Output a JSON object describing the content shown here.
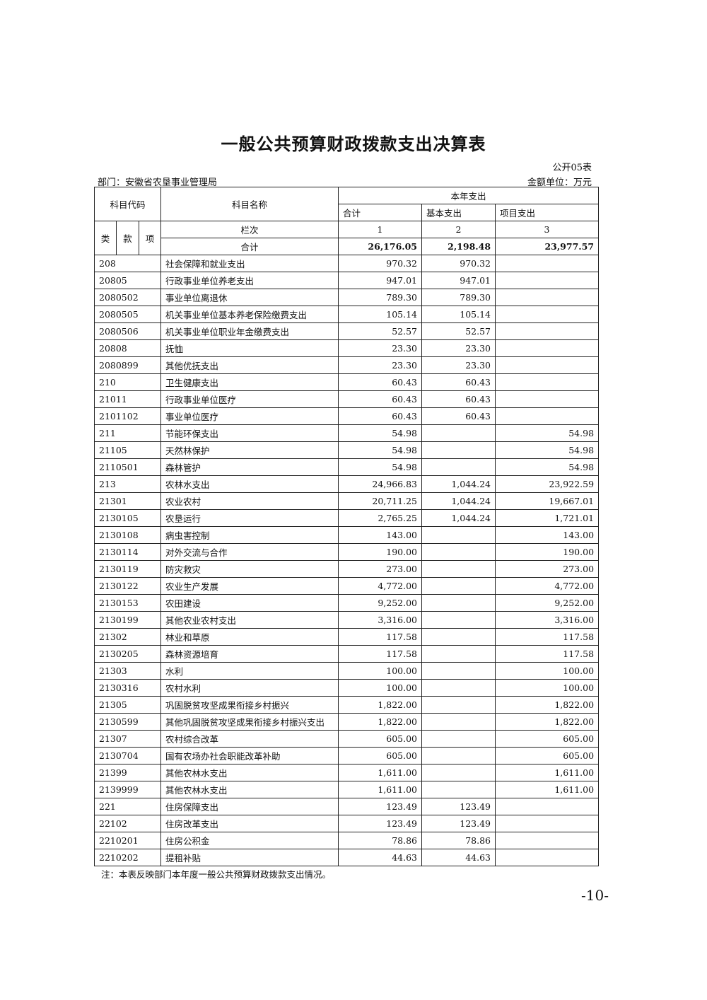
{
  "title": "一般公共预算财政拨款支出决算表",
  "form_no": "公开05表",
  "department": "部门：安徽省农垦事业管理局",
  "unit": "金额单位：万元",
  "header": {
    "code": "科目代码",
    "name": "科目名称",
    "current_year": "本年支出",
    "total": "合计",
    "basic": "基本支出",
    "project": "项目支出",
    "lei": "类",
    "kuan": "款",
    "xiang": "项",
    "column_no": "栏次",
    "col1": "1",
    "col2": "2",
    "col3": "3",
    "sum_label": "合计",
    "sum_total": "26,176.05",
    "sum_basic": "2,198.48",
    "sum_project": "23,977.57"
  },
  "rows": [
    {
      "code": "208",
      "name": "社会保障和就业支出",
      "total": "970.32",
      "basic": "970.32",
      "project": ""
    },
    {
      "code": "20805",
      "name": "行政事业单位养老支出",
      "total": "947.01",
      "basic": "947.01",
      "project": ""
    },
    {
      "code": "2080502",
      "name": "事业单位离退休",
      "total": "789.30",
      "basic": "789.30",
      "project": ""
    },
    {
      "code": "2080505",
      "name": "机关事业单位基本养老保险缴费支出",
      "total": "105.14",
      "basic": "105.14",
      "project": ""
    },
    {
      "code": "2080506",
      "name": "机关事业单位职业年金缴费支出",
      "total": "52.57",
      "basic": "52.57",
      "project": ""
    },
    {
      "code": "20808",
      "name": "抚恤",
      "total": "23.30",
      "basic": "23.30",
      "project": ""
    },
    {
      "code": "2080899",
      "name": "其他优抚支出",
      "total": "23.30",
      "basic": "23.30",
      "project": ""
    },
    {
      "code": "210",
      "name": "卫生健康支出",
      "total": "60.43",
      "basic": "60.43",
      "project": ""
    },
    {
      "code": "21011",
      "name": "行政事业单位医疗",
      "total": "60.43",
      "basic": "60.43",
      "project": ""
    },
    {
      "code": "2101102",
      "name": "事业单位医疗",
      "total": "60.43",
      "basic": "60.43",
      "project": ""
    },
    {
      "code": "211",
      "name": "节能环保支出",
      "total": "54.98",
      "basic": "",
      "project": "54.98"
    },
    {
      "code": "21105",
      "name": "天然林保护",
      "total": "54.98",
      "basic": "",
      "project": "54.98"
    },
    {
      "code": "2110501",
      "name": "森林管护",
      "total": "54.98",
      "basic": "",
      "project": "54.98"
    },
    {
      "code": "213",
      "name": "农林水支出",
      "total": "24,966.83",
      "basic": "1,044.24",
      "project": "23,922.59"
    },
    {
      "code": "21301",
      "name": "农业农村",
      "total": "20,711.25",
      "basic": "1,044.24",
      "project": "19,667.01"
    },
    {
      "code": "2130105",
      "name": "农垦运行",
      "total": "2,765.25",
      "basic": "1,044.24",
      "project": "1,721.01"
    },
    {
      "code": "2130108",
      "name": "病虫害控制",
      "total": "143.00",
      "basic": "",
      "project": "143.00"
    },
    {
      "code": "2130114",
      "name": "对外交流与合作",
      "total": "190.00",
      "basic": "",
      "project": "190.00"
    },
    {
      "code": "2130119",
      "name": "防灾救灾",
      "total": "273.00",
      "basic": "",
      "project": "273.00"
    },
    {
      "code": "2130122",
      "name": "农业生产发展",
      "total": "4,772.00",
      "basic": "",
      "project": "4,772.00"
    },
    {
      "code": "2130153",
      "name": "农田建设",
      "total": "9,252.00",
      "basic": "",
      "project": "9,252.00"
    },
    {
      "code": "2130199",
      "name": "其他农业农村支出",
      "total": "3,316.00",
      "basic": "",
      "project": "3,316.00"
    },
    {
      "code": "21302",
      "name": "林业和草原",
      "total": "117.58",
      "basic": "",
      "project": "117.58"
    },
    {
      "code": "2130205",
      "name": "森林资源培育",
      "total": "117.58",
      "basic": "",
      "project": "117.58"
    },
    {
      "code": "21303",
      "name": "水利",
      "total": "100.00",
      "basic": "",
      "project": "100.00"
    },
    {
      "code": "2130316",
      "name": "农村水利",
      "total": "100.00",
      "basic": "",
      "project": "100.00"
    },
    {
      "code": "21305",
      "name": "巩固脱贫攻坚成果衔接乡村振兴",
      "total": "1,822.00",
      "basic": "",
      "project": "1,822.00"
    },
    {
      "code": "2130599",
      "name": "其他巩固脱贫攻坚成果衔接乡村振兴支出",
      "total": "1,822.00",
      "basic": "",
      "project": "1,822.00"
    },
    {
      "code": "21307",
      "name": "农村综合改革",
      "total": "605.00",
      "basic": "",
      "project": "605.00"
    },
    {
      "code": "2130704",
      "name": "国有农场办社会职能改革补助",
      "total": "605.00",
      "basic": "",
      "project": "605.00"
    },
    {
      "code": "21399",
      "name": "其他农林水支出",
      "total": "1,611.00",
      "basic": "",
      "project": "1,611.00"
    },
    {
      "code": "2139999",
      "name": "其他农林水支出",
      "total": "1,611.00",
      "basic": "",
      "project": "1,611.00"
    },
    {
      "code": "221",
      "name": "住房保障支出",
      "total": "123.49",
      "basic": "123.49",
      "project": ""
    },
    {
      "code": "22102",
      "name": "住房改革支出",
      "total": "123.49",
      "basic": "123.49",
      "project": ""
    },
    {
      "code": "2210201",
      "name": "住房公积金",
      "total": "78.86",
      "basic": "78.86",
      "project": ""
    },
    {
      "code": "2210202",
      "name": "提租补贴",
      "total": "44.63",
      "basic": "44.63",
      "project": ""
    }
  ],
  "note": "注：本表反映部门本年度一般公共预算财政拨款支出情况。",
  "page_number": "-10-"
}
